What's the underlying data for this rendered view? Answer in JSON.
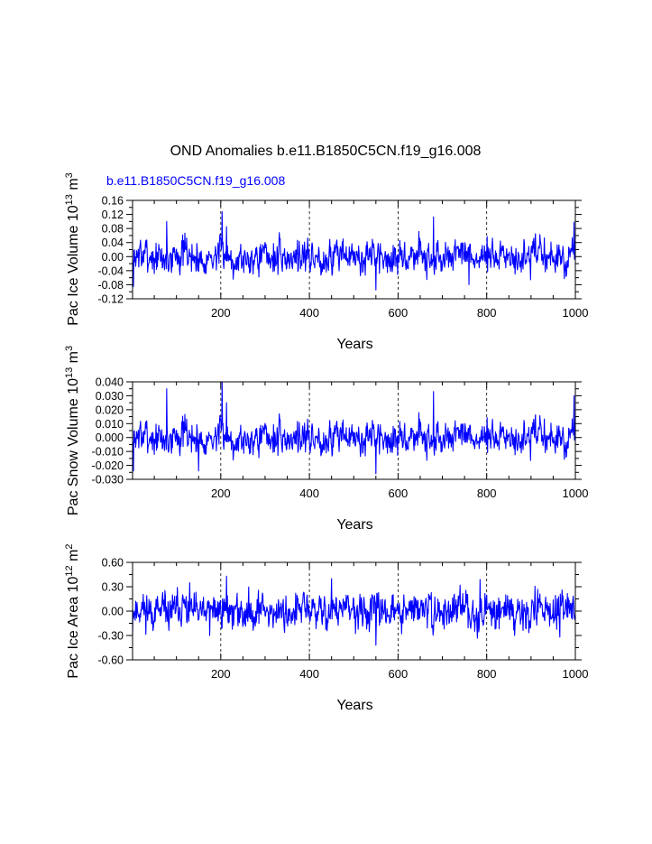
{
  "figure": {
    "title": "OND Anomalies b.e11.B1850C5CN.f19_g16.008",
    "case_label": "b.e11.B1850C5CN.f19_g16.008",
    "case_label_color": "#0000ff",
    "line_color": "#0000ff"
  },
  "chart_data": [
    {
      "type": "line",
      "id": "ice-volume",
      "ylabel": {
        "base": "Pac Ice Volume 10",
        "exp": "13",
        "unit": " m",
        "unit_exp": "3"
      },
      "xlabel": "Years",
      "xlim": [
        1,
        1000
      ],
      "ylim": [
        -0.12,
        0.16
      ],
      "xticks": [
        200,
        400,
        600,
        800,
        1000
      ],
      "xtick_labels": [
        "200",
        "400",
        "600",
        "800",
        "1000"
      ],
      "yticks": [
        -0.12,
        -0.08,
        -0.04,
        0.0,
        0.04,
        0.08,
        0.12,
        0.16
      ],
      "ytick_labels": [
        "-0.12",
        "-0.08",
        "-0.04",
        "0.00",
        "0.04",
        "0.08",
        "0.12",
        "0.16"
      ],
      "vgrid_dashed": [
        200,
        400,
        600,
        800
      ],
      "series": {
        "name": "b.e11.B1850C5CN.f19_g16.008",
        "n": 1000,
        "seed": 7,
        "scale": 0.03,
        "noise": 0.022,
        "amp": 0.018,
        "start": -0.085,
        "peaks": [
          [
            78,
            0.1
          ],
          [
            203,
            0.128
          ],
          [
            213,
            0.085
          ],
          [
            680,
            0.113
          ],
          [
            997,
            0.098
          ]
        ],
        "troughs": [
          [
            550,
            -0.095
          ],
          [
            760,
            -0.08
          ],
          [
            3,
            -0.085
          ]
        ]
      }
    },
    {
      "type": "line",
      "id": "snow-volume",
      "ylabel": {
        "base": "Pac Snow Volume 10",
        "exp": "13",
        "unit": " m",
        "unit_exp": "3"
      },
      "xlabel": "Years",
      "xlim": [
        1,
        1000
      ],
      "ylim": [
        -0.03,
        0.04
      ],
      "xticks": [
        200,
        400,
        600,
        800,
        1000
      ],
      "xtick_labels": [
        "200",
        "400",
        "600",
        "800",
        "1000"
      ],
      "yticks": [
        -0.03,
        -0.02,
        -0.01,
        0.0,
        0.01,
        0.02,
        0.03,
        0.04
      ],
      "ytick_labels": [
        "-0.030",
        "-0.020",
        "-0.010",
        "0.000",
        "0.010",
        "0.020",
        "0.030",
        "0.040"
      ],
      "vgrid_dashed": [
        200,
        400,
        600,
        800
      ],
      "series": {
        "name": "b.e11.B1850C5CN.f19_g16.008",
        "n": 1000,
        "seed": 7,
        "scale": 0.0075,
        "noise": 0.0055,
        "amp": 0.0045,
        "start": -0.024,
        "peaks": [
          [
            78,
            0.035
          ],
          [
            203,
            0.04
          ],
          [
            213,
            0.025
          ],
          [
            680,
            0.033
          ],
          [
            997,
            0.03
          ]
        ],
        "troughs": [
          [
            550,
            -0.026
          ],
          [
            150,
            -0.024
          ],
          [
            3,
            -0.024
          ]
        ]
      }
    },
    {
      "type": "line",
      "id": "ice-area",
      "ylabel": {
        "base": "Pac Ice Area 10",
        "exp": "12",
        "unit": " m",
        "unit_exp": "2"
      },
      "xlabel": "Years",
      "xlim": [
        1,
        1000
      ],
      "ylim": [
        -0.6,
        0.6
      ],
      "xticks": [
        200,
        400,
        600,
        800,
        1000
      ],
      "xtick_labels": [
        "200",
        "400",
        "600",
        "800",
        "1000"
      ],
      "yticks": [
        -0.6,
        -0.3,
        0.0,
        0.3,
        0.6
      ],
      "ytick_labels": [
        "-0.60",
        "-0.30",
        "0.00",
        "0.30",
        "0.60"
      ],
      "vgrid_dashed": [
        200,
        400,
        600,
        800
      ],
      "series": {
        "name": "b.e11.B1850C5CN.f19_g16.008",
        "n": 1000,
        "seed": 11,
        "scale": 0.14,
        "noise": 0.1,
        "amp": 0.07,
        "start": -0.3,
        "peaks": [
          [
            213,
            0.43
          ],
          [
            450,
            0.4
          ],
          [
            785,
            0.39
          ],
          [
            130,
            0.35
          ]
        ],
        "troughs": [
          [
            550,
            -0.42
          ],
          [
            175,
            -0.3
          ],
          [
            965,
            -0.32
          ]
        ]
      }
    }
  ]
}
